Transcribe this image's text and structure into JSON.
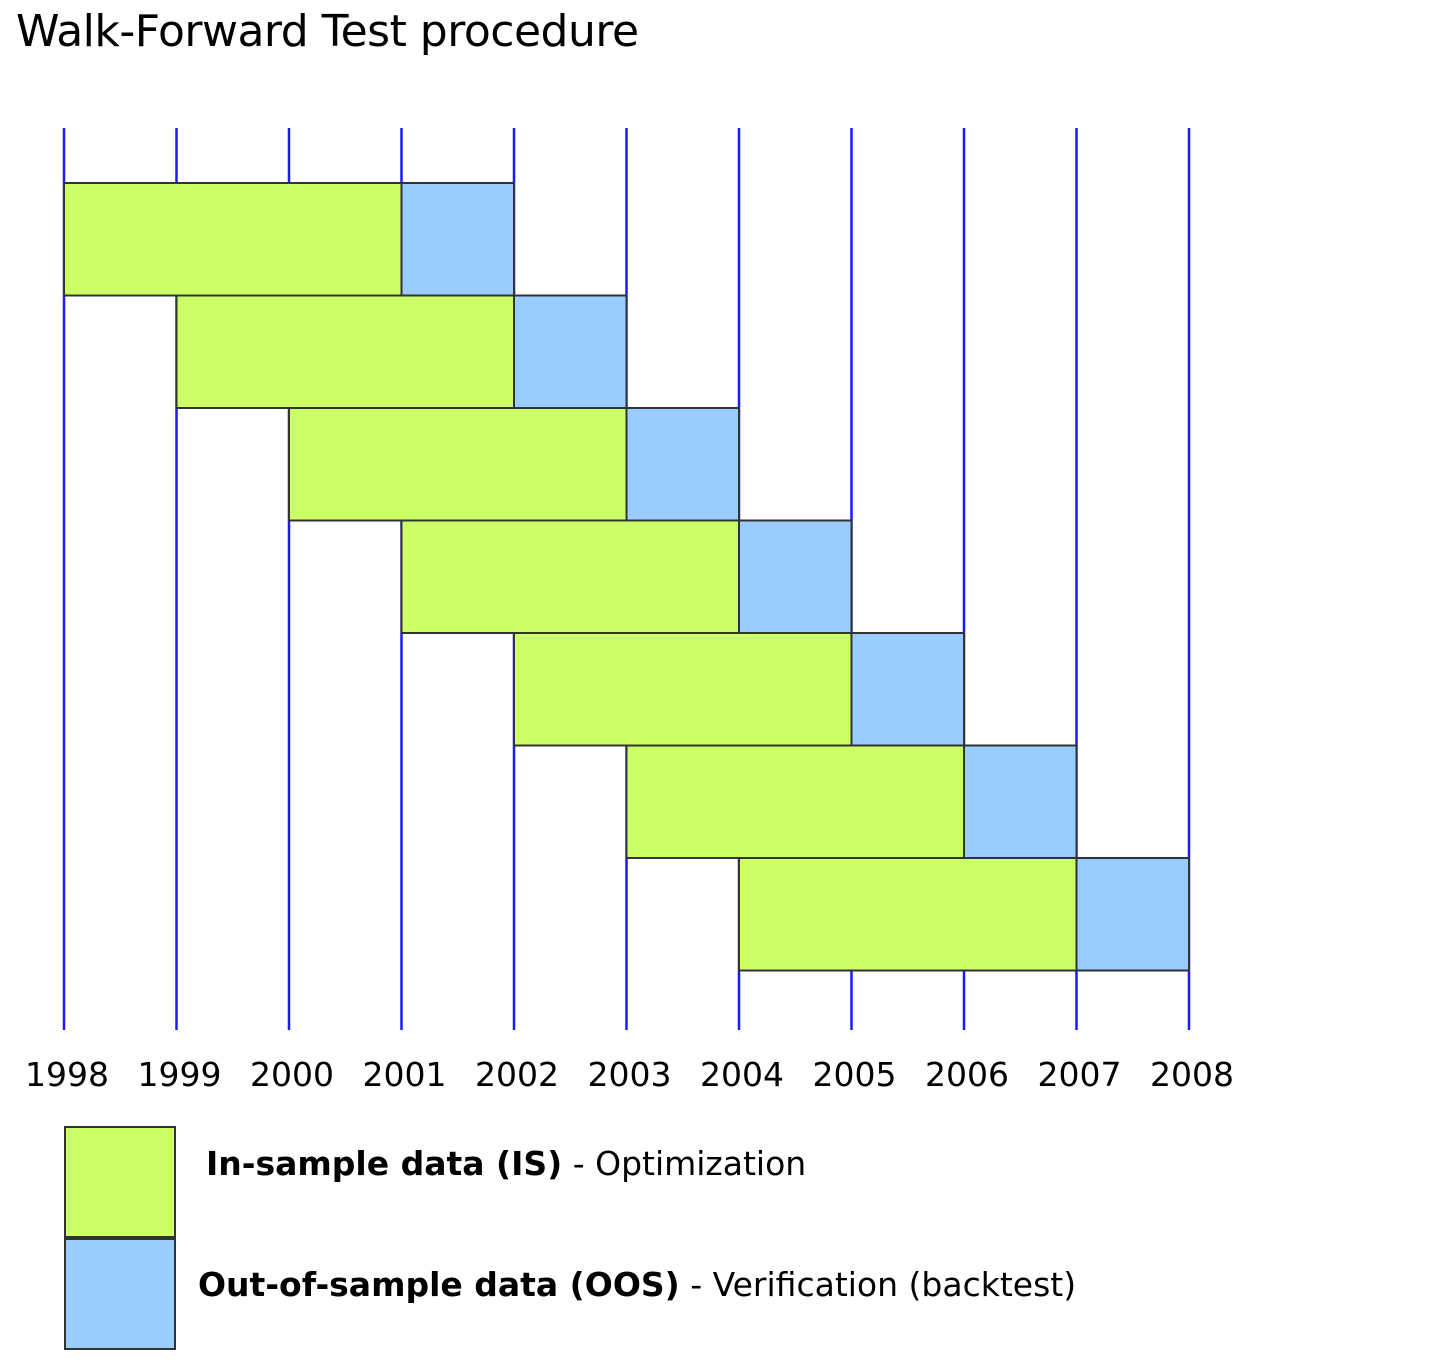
{
  "title": "Walk-Forward Test procedure",
  "colors": {
    "grid_line": "#1a1aff",
    "in_sample": "#ccff66",
    "out_of_sample": "#99ccff",
    "border": "#333333"
  },
  "years": [
    "1998",
    "1999",
    "2000",
    "2001",
    "2002",
    "2003",
    "2004",
    "2005",
    "2006",
    "2007",
    "2008"
  ],
  "windows": [
    {
      "is_start": 1998,
      "is_end": 2001,
      "oos_end": 2002
    },
    {
      "is_start": 1999,
      "is_end": 2002,
      "oos_end": 2003
    },
    {
      "is_start": 2000,
      "is_end": 2003,
      "oos_end": 2004
    },
    {
      "is_start": 2001,
      "is_end": 2004,
      "oos_end": 2005
    },
    {
      "is_start": 2002,
      "is_end": 2005,
      "oos_end": 2006
    },
    {
      "is_start": 2003,
      "is_end": 2006,
      "oos_end": 2007
    },
    {
      "is_start": 2004,
      "is_end": 2007,
      "oos_end": 2008
    }
  ],
  "legend": {
    "in_sample": {
      "bold": "In-sample data (IS)",
      "rest": " - Optimization"
    },
    "out_of_sample": {
      "bold": "Out-of-sample data (OOS)",
      "rest": " - Verification (backtest)"
    }
  }
}
